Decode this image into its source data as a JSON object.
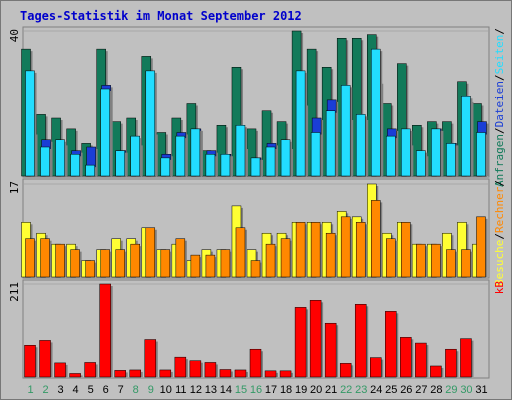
{
  "chart_data": {
    "type": "bar",
    "title": "Tages-Statistik im Monat September 2012",
    "categories": [
      "1",
      "2",
      "3",
      "4",
      "5",
      "6",
      "7",
      "8",
      "9",
      "10",
      "11",
      "12",
      "13",
      "14",
      "15",
      "16",
      "17",
      "18",
      "19",
      "20",
      "21",
      "22",
      "23",
      "24",
      "25",
      "26",
      "27",
      "28",
      "29",
      "30",
      "31"
    ],
    "weekend_days": [
      "1",
      "2",
      "8",
      "9",
      "15",
      "16",
      "22",
      "23",
      "29",
      "30"
    ],
    "colors": {
      "frame": "#888888",
      "plot_bg": "#c0c0c0",
      "title": "#0000cc",
      "weekday_label": "#000000",
      "weekend_label": "#339966",
      "anfragen": "#127a5a",
      "dateien": "#1a3ed6",
      "seiten": "#22ddff",
      "besuche": "#ffff33",
      "rechner": "#ff8800",
      "kb": "#ff0000"
    },
    "panels": [
      {
        "id": "top",
        "ymax": 40,
        "ymax_label": "40",
        "series": [
          {
            "name": "Anfragen",
            "values": [
              35,
              17,
              16,
              13,
              9,
              35,
              15,
              16,
              33,
              12,
              16,
              20,
              7,
              14,
              30,
              13,
              18,
              15,
              40,
              35,
              30,
              38,
              38,
              39,
              20,
              31,
              14,
              15,
              15,
              26,
              20
            ]
          },
          {
            "name": "Dateien",
            "values": [
              12,
              10,
              9,
              7,
              8,
              25,
              7,
              9,
              12,
              6,
              12,
              13,
              7,
              6,
              8,
              5,
              9,
              8,
              20,
              16,
              21,
              16,
              16,
              26,
              13,
              9,
              6,
              13,
              9,
              21,
              15
            ]
          },
          {
            "name": "Seiten",
            "values": [
              29,
              8,
              10,
              6,
              3,
              24,
              7,
              11,
              29,
              5,
              11,
              13,
              6,
              6,
              14,
              5,
              8,
              10,
              29,
              12,
              18,
              25,
              17,
              35,
              11,
              13,
              7,
              13,
              9,
              22,
              12
            ]
          }
        ]
      },
      {
        "id": "mid",
        "ymax": 17,
        "ymax_label": "17",
        "series": [
          {
            "name": "Besuche",
            "values": [
              10,
              8,
              6,
              6,
              3,
              5,
              7,
              7,
              9,
              5,
              6,
              3,
              5,
              5,
              13,
              5,
              8,
              8,
              10,
              10,
              10,
              12,
              11,
              17,
              8,
              10,
              6,
              6,
              8,
              10,
              6
            ]
          },
          {
            "name": "Rechner",
            "values": [
              7,
              7,
              6,
              5,
              3,
              5,
              5,
              6,
              9,
              5,
              7,
              4,
              4,
              5,
              9,
              3,
              6,
              7,
              10,
              10,
              8,
              11,
              10,
              14,
              7,
              10,
              6,
              6,
              5,
              5,
              11
            ]
          }
        ]
      },
      {
        "id": "bot",
        "ymax": 211,
        "ymax_label": "211",
        "series": [
          {
            "name": "kB",
            "values": [
              72,
              83,
              32,
              8,
              33,
              211,
              15,
              16,
              85,
              16,
              45,
              37,
              33,
              17,
              16,
              63,
              14,
              14,
              158,
              174,
              122,
              31,
              165,
              44,
              149,
              90,
              77,
              25,
              63,
              87,
              0
            ]
          }
        ]
      }
    ],
    "legend": {
      "top": [
        "Anfragen",
        "/",
        "Dateien",
        "/",
        "Seiten",
        "/"
      ],
      "mid": [
        "Besuche",
        "/",
        "Rechner",
        "/"
      ],
      "bot": [
        "kB"
      ]
    }
  }
}
